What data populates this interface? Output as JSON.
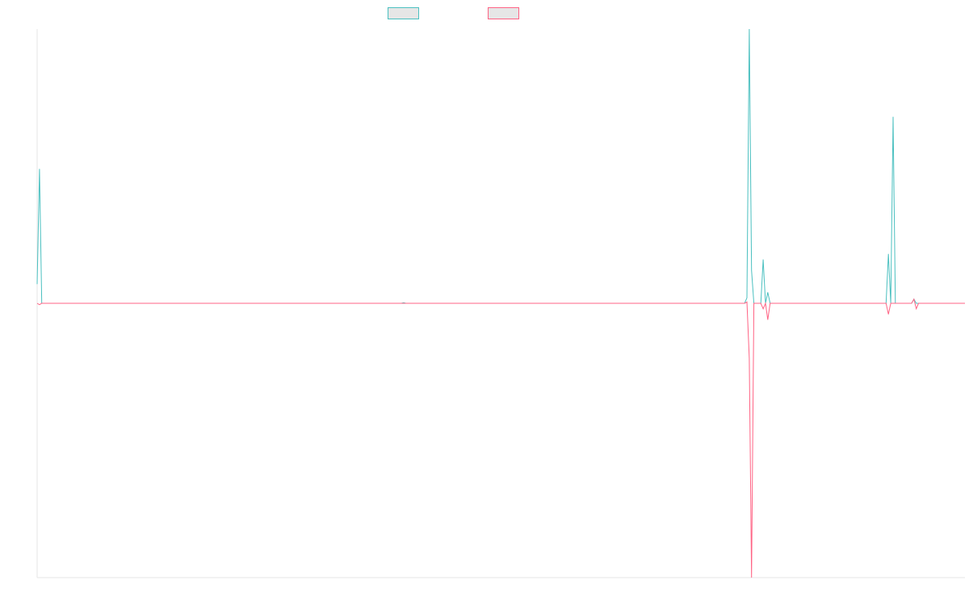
{
  "chart_data": {
    "type": "line",
    "title": "",
    "xlabel": "",
    "ylabel": "",
    "grid": false,
    "legend": {
      "placement": "top-center"
    },
    "ylim": [
      -100,
      100
    ],
    "xlim": [
      0,
      400
    ],
    "series": [
      {
        "color": "#4bc0c0",
        "fill": "#e6e6e6",
        "points": [
          [
            0,
            7
          ],
          [
            1,
            49
          ],
          [
            2,
            0
          ],
          [
            157,
            0
          ],
          [
            158,
            0.2
          ],
          [
            159,
            0
          ],
          [
            305,
            0
          ],
          [
            306,
            2
          ],
          [
            307,
            100
          ],
          [
            308,
            12
          ],
          [
            309,
            0
          ],
          [
            312,
            0
          ],
          [
            313,
            16
          ],
          [
            314,
            0
          ],
          [
            315,
            4
          ],
          [
            316,
            0
          ],
          [
            366,
            0
          ],
          [
            367,
            18
          ],
          [
            368,
            0
          ],
          [
            369,
            68
          ],
          [
            370,
            0
          ],
          [
            377,
            0
          ],
          [
            378,
            1.5
          ],
          [
            379,
            0
          ],
          [
            400,
            0
          ]
        ]
      },
      {
        "color": "#ff6384",
        "fill": "#e6e6e6",
        "points": [
          [
            0,
            0
          ],
          [
            1,
            -0.5
          ],
          [
            2,
            0
          ],
          [
            305,
            0
          ],
          [
            306,
            0.5
          ],
          [
            307,
            -20
          ],
          [
            308,
            -100
          ],
          [
            309,
            0
          ],
          [
            312,
            0
          ],
          [
            313,
            -2
          ],
          [
            314,
            0
          ],
          [
            315,
            -6
          ],
          [
            316,
            0
          ],
          [
            366,
            0
          ],
          [
            367,
            -4
          ],
          [
            368,
            0
          ],
          [
            377,
            0
          ],
          [
            378,
            1.5
          ],
          [
            379,
            -2
          ],
          [
            380,
            0
          ],
          [
            400,
            0
          ]
        ]
      }
    ]
  }
}
